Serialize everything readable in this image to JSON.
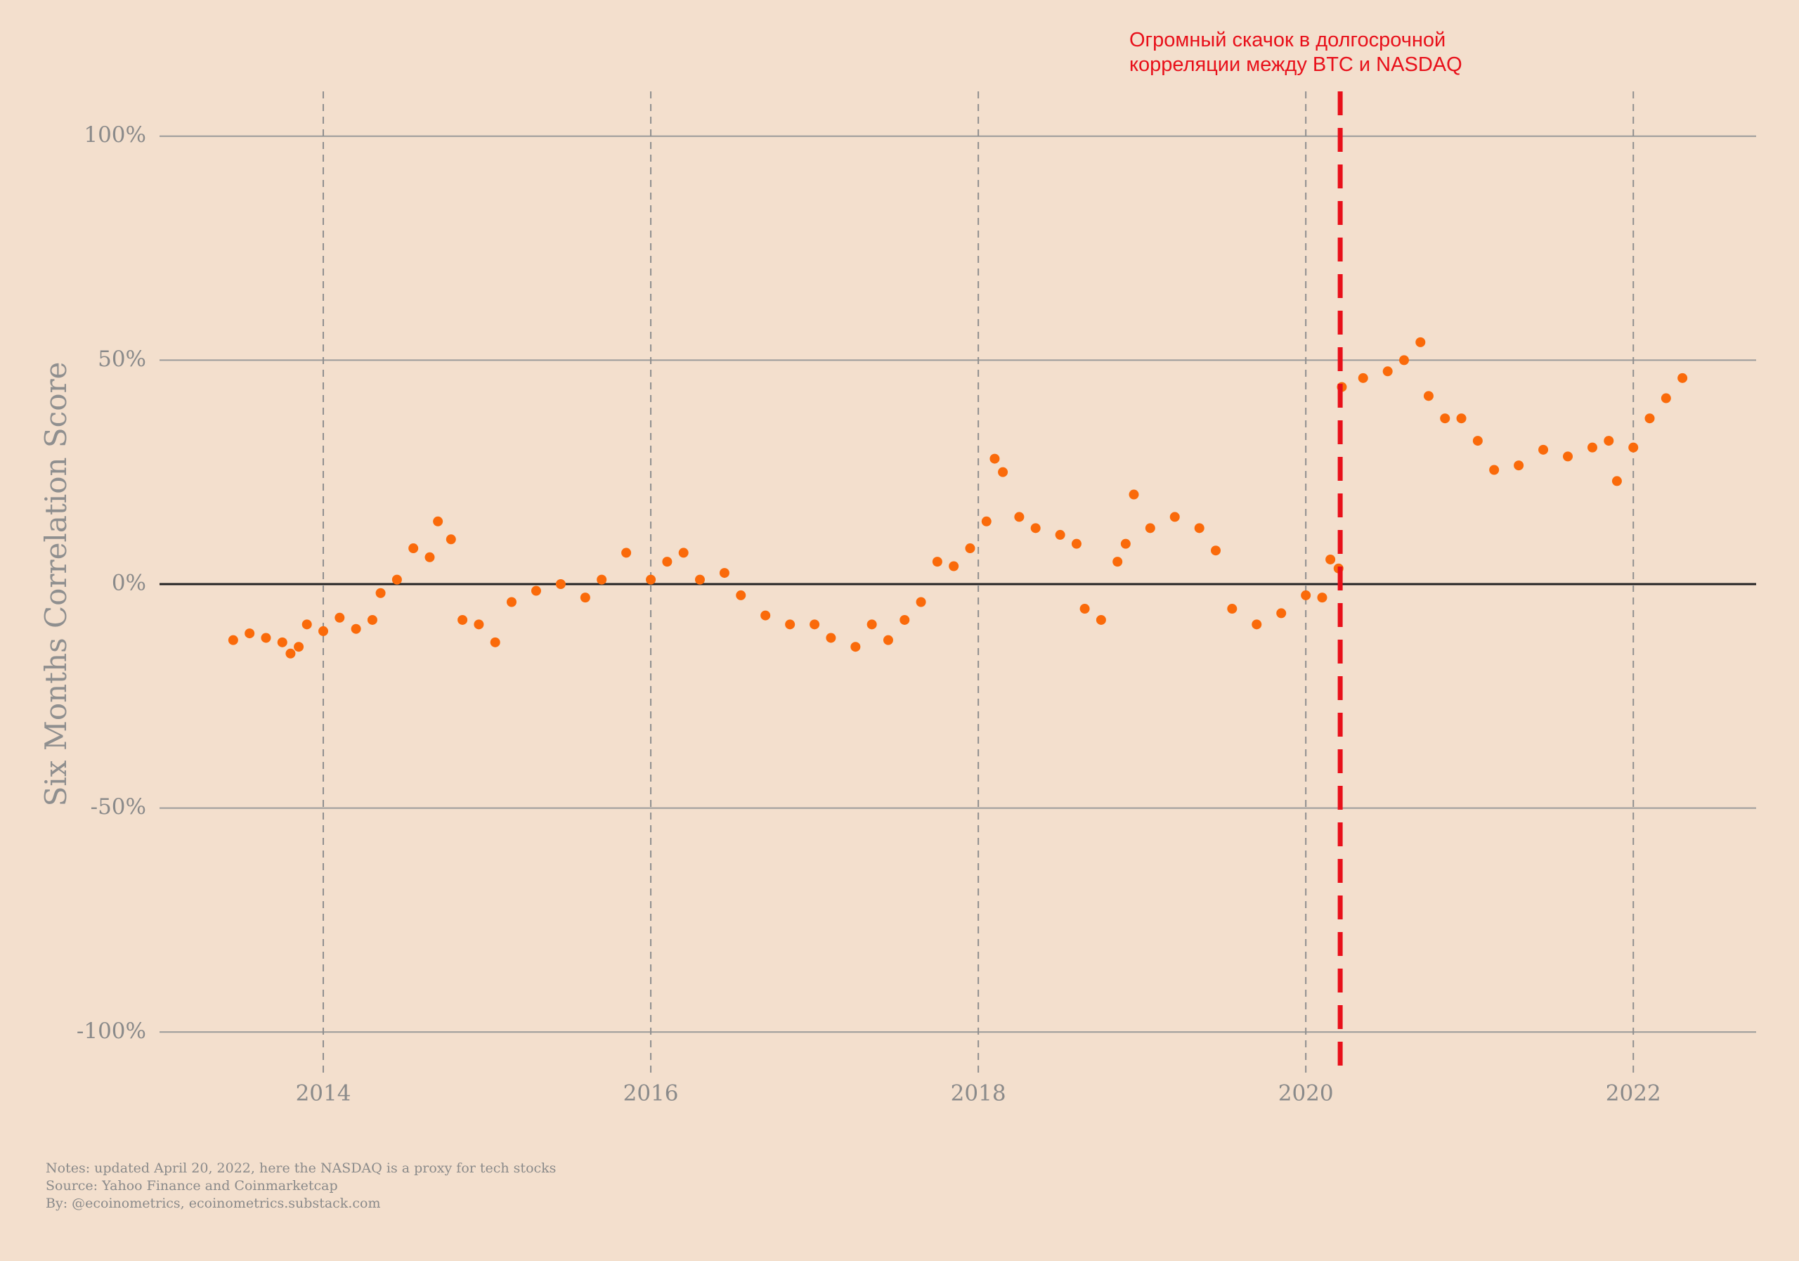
{
  "chart_data": {
    "type": "scatter",
    "y_label": "Six Months Correlation Score",
    "annotation": [
      "Огромный скачок в долгосрочной",
      "корреляции между BTC и NASDAQ"
    ],
    "notes": [
      "Notes: updated April 20, 2022, here the NASDAQ is a proxy for tech stocks",
      "Source: Yahoo Finance and Coinmarketcap",
      "By: @ecoinometrics, ecoinometrics.substack.com"
    ],
    "color": "#fa6a0a",
    "event_x": 2020.21,
    "event_color": "#e8101a",
    "xlim": [
      2013,
      2022.75
    ],
    "xticks": [
      2014,
      2016,
      2018,
      2020,
      2022
    ],
    "ylim": [
      -110,
      110
    ],
    "yticks": [
      {
        "value": -100,
        "label": "-100%"
      },
      {
        "value": -50,
        "label": "-50%"
      },
      {
        "value": 0,
        "label": "0%"
      },
      {
        "value": 50,
        "label": "50%"
      },
      {
        "value": 100,
        "label": "100%"
      }
    ],
    "grid": true,
    "x": [
      2013.45,
      2013.55,
      2013.65,
      2013.75,
      2013.8,
      2013.85,
      2013.9,
      2014.0,
      2014.1,
      2014.2,
      2014.3,
      2014.35,
      2014.45,
      2014.55,
      2014.65,
      2014.7,
      2014.78,
      2014.85,
      2014.95,
      2015.05,
      2015.15,
      2015.3,
      2015.45,
      2015.6,
      2015.7,
      2015.85,
      2016.0,
      2016.1,
      2016.2,
      2016.3,
      2016.45,
      2016.55,
      2016.7,
      2016.85,
      2017.0,
      2017.1,
      2017.25,
      2017.35,
      2017.45,
      2017.55,
      2017.65,
      2017.75,
      2017.85,
      2017.95,
      2018.05,
      2018.1,
      2018.15,
      2018.25,
      2018.35,
      2018.5,
      2018.6,
      2018.65,
      2018.75,
      2018.85,
      2018.9,
      2018.95,
      2019.05,
      2019.2,
      2019.35,
      2019.45,
      2019.55,
      2019.7,
      2019.85,
      2020.0,
      2020.1,
      2020.15,
      2020.2,
      2020.22,
      2020.35,
      2020.5,
      2020.6,
      2020.7,
      2020.75,
      2020.85,
      2020.95,
      2021.05,
      2021.15,
      2021.3,
      2021.45,
      2021.6,
      2021.75,
      2021.85,
      2021.9,
      2022.0,
      2022.1,
      2022.2,
      2022.3
    ],
    "values": [
      -12.5,
      -11,
      -12,
      -13,
      -15.5,
      -14,
      -9,
      -10.5,
      -7.5,
      -10,
      -8,
      -2,
      1,
      8,
      6,
      14,
      10,
      -8,
      -9,
      -13,
      -4,
      -1.5,
      0,
      -3,
      1,
      7,
      1,
      5,
      7,
      1,
      2.5,
      -2.5,
      -7,
      -9,
      -9,
      -12,
      -14,
      -9,
      -12.5,
      -8,
      -4,
      5,
      4,
      8,
      14,
      28,
      25,
      15,
      12.5,
      11,
      9,
      -5.5,
      -8,
      5,
      9,
      20,
      12.5,
      15,
      12.5,
      7.5,
      -5.5,
      -9,
      -6.5,
      -2.5,
      -3,
      5.5,
      3.5,
      44,
      46,
      47.5,
      50,
      54,
      42,
      37,
      37,
      32,
      25.5,
      26.5,
      30,
      28.5,
      30.5,
      32,
      23,
      30.5,
      37,
      41.5,
      46
    ]
  }
}
